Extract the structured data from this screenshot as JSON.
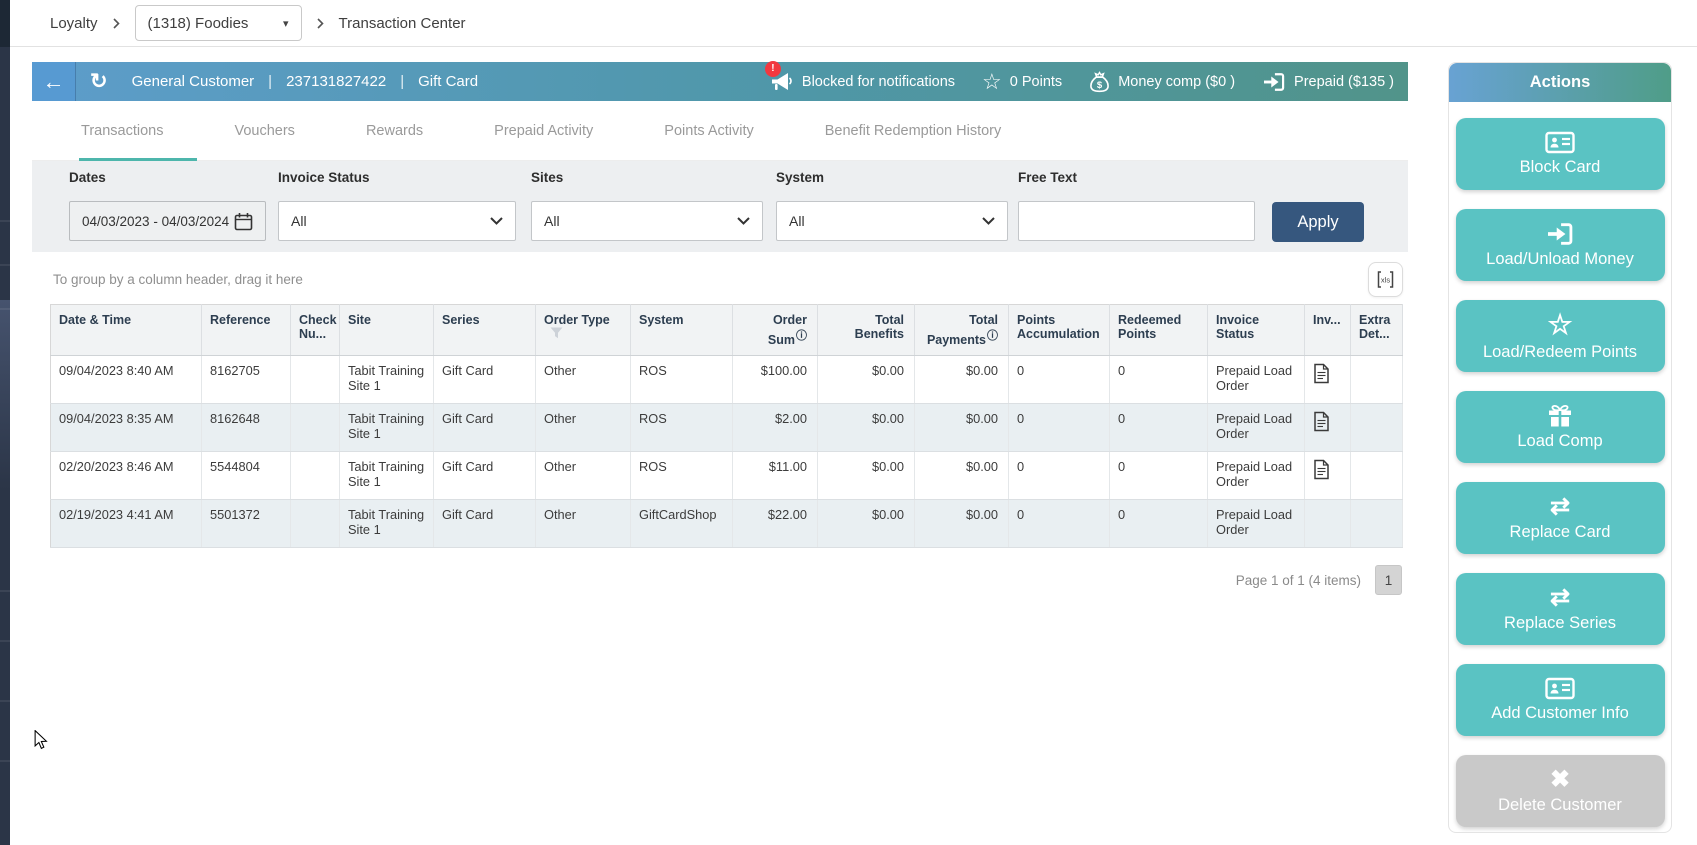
{
  "breadcrumb": {
    "root": "Loyalty",
    "venue": "(1318) Foodies",
    "page": "Transaction Center"
  },
  "customer_bar": {
    "name": "General Customer",
    "card_number": "237131827422",
    "card_type": "Gift Card",
    "separator": "|",
    "blocked_badge": "!",
    "blocked_label": "Blocked for notifications",
    "points_label": "0 Points",
    "money_comp_label": "Money comp ($0 )",
    "prepaid_label": "Prepaid ($135 )"
  },
  "tabs": [
    {
      "label": "Transactions",
      "active": true
    },
    {
      "label": "Vouchers",
      "active": false
    },
    {
      "label": "Rewards",
      "active": false
    },
    {
      "label": "Prepaid Activity",
      "active": false
    },
    {
      "label": "Points Activity",
      "active": false
    },
    {
      "label": "Benefit Redemption History",
      "active": false
    }
  ],
  "filters": {
    "dates_label": "Dates",
    "dates_value": "04/03/2023 - 04/03/2024",
    "invoice_status_label": "Invoice Status",
    "invoice_status_value": "All",
    "sites_label": "Sites",
    "sites_value": "All",
    "system_label": "System",
    "system_value": "All",
    "free_text_label": "Free Text",
    "free_text_value": "",
    "apply_label": "Apply"
  },
  "grid": {
    "group_hint": "To group by a column header, drag it here",
    "columns": [
      {
        "label": "Date & Time"
      },
      {
        "label": "Reference"
      },
      {
        "label": "Check Nu..."
      },
      {
        "label": "Site"
      },
      {
        "label": "Series"
      },
      {
        "label": "Order Type",
        "icon": "filter"
      },
      {
        "label": "System"
      },
      {
        "label": "Order Sum",
        "icon": "info",
        "align": "right"
      },
      {
        "label": "Total Benefits",
        "align": "right"
      },
      {
        "label": "Total Payments",
        "icon": "info",
        "align": "right"
      },
      {
        "label": "Points Accumulation"
      },
      {
        "label": "Redeemed Points"
      },
      {
        "label": "Invoice Status"
      },
      {
        "label": "Inv..."
      },
      {
        "label": "Extra Det..."
      }
    ],
    "rows": [
      {
        "cells": [
          "09/04/2023 8:40 AM",
          "8162705",
          "",
          "Tabit Training Site 1",
          "Gift Card",
          "Other",
          "ROS",
          "$100.00",
          "$0.00",
          "$0.00",
          "0",
          "0",
          "Prepaid Load Order",
          "",
          ""
        ],
        "has_invoice_doc": true
      },
      {
        "cells": [
          "09/04/2023 8:35 AM",
          "8162648",
          "",
          "Tabit Training Site 1",
          "Gift Card",
          "Other",
          "ROS",
          "$2.00",
          "$0.00",
          "$0.00",
          "0",
          "0",
          "Prepaid Load Order",
          "",
          ""
        ],
        "has_invoice_doc": true
      },
      {
        "cells": [
          "02/20/2023 8:46 AM",
          "5544804",
          "",
          "Tabit Training Site 1",
          "Gift Card",
          "Other",
          "ROS",
          "$11.00",
          "$0.00",
          "$0.00",
          "0",
          "0",
          "Prepaid Load Order",
          "",
          ""
        ],
        "has_invoice_doc": true
      },
      {
        "cells": [
          "02/19/2023 4:41 AM",
          "5501372",
          "",
          "Tabit Training Site 1",
          "Gift Card",
          "Other",
          "GiftCardShop",
          "$22.00",
          "$0.00",
          "$0.00",
          "0",
          "0",
          "Prepaid Load Order",
          "",
          ""
        ],
        "has_invoice_doc": false
      }
    ],
    "pagination_text": "Page 1 of 1 (4 items)",
    "page_number": "1"
  },
  "actions": {
    "title": "Actions",
    "buttons": [
      {
        "label": "Block Card",
        "icon": "id-card-icon",
        "disabled": false
      },
      {
        "label": "Load/Unload Money",
        "icon": "sign-in-icon",
        "disabled": false
      },
      {
        "label": "Load/Redeem Points",
        "icon": "star-icon",
        "disabled": false
      },
      {
        "label": "Load Comp",
        "icon": "gift-icon",
        "disabled": false
      },
      {
        "label": "Replace Card",
        "icon": "transfer-icon",
        "disabled": false
      },
      {
        "label": "Replace Series",
        "icon": "transfer-icon",
        "disabled": false
      },
      {
        "label": "Add Customer Info",
        "icon": "id-card-icon",
        "disabled": false
      },
      {
        "label": "Delete Customer",
        "icon": "x-icon",
        "disabled": true
      }
    ]
  },
  "colors": {
    "header_gradient_start": "#5d9dca",
    "header_gradient_end": "#51948a",
    "accent_teal": "#5ac3c3",
    "tab_underline": "#4db6ac",
    "apply_blue": "#36577e",
    "badge_red": "#f2383f",
    "row_alt": "#e9eff2"
  }
}
